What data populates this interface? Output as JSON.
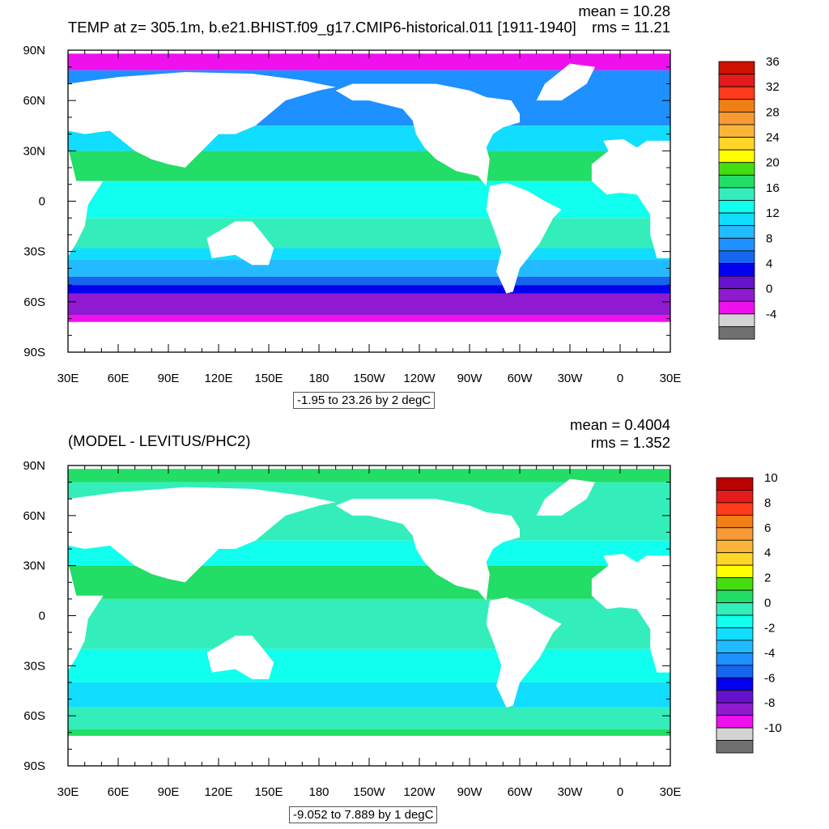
{
  "chart_data": [
    {
      "type": "heatmap",
      "title": "TEMP at z= 305.1m, b.e21.BHIST.f09_g17.CMIP6-historical.011 [1911-1940]",
      "stat_mean": "mean = 10.28",
      "stat_rms": "rms = 11.21",
      "range_label": "-1.95 to 23.26 by 2 degC",
      "x_ticks": [
        "30E",
        "60E",
        "90E",
        "120E",
        "150E",
        "180",
        "150W",
        "120W",
        "90W",
        "60W",
        "30W",
        "0",
        "30E"
      ],
      "y_ticks": [
        "90N",
        "60N",
        "30N",
        "0",
        "30S",
        "60S",
        "90S"
      ],
      "colorbar": {
        "labels": [
          "36",
          "32",
          "28",
          "24",
          "20",
          "16",
          "12",
          "8",
          "4",
          "0",
          "-4"
        ],
        "colors": [
          "#cc1100",
          "#e41a1c",
          "#ff3b1a",
          "#f07f14",
          "#f79a34",
          "#fbb43a",
          "#ffd52a",
          "#ffff00",
          "#44dd11",
          "#22dd66",
          "#33eebb",
          "#11ffee",
          "#11ddff",
          "#22bbff",
          "#1e90ff",
          "#1665ee",
          "#0000ee",
          "#6611cc",
          "#8f1ad0",
          "#ee11ee",
          "#d3d3d3",
          "#707070"
        ]
      },
      "land_color": "#ffffff"
    },
    {
      "type": "heatmap",
      "title": "(MODEL - LEVITUS/PHC2)",
      "stat_mean": "mean = 0.4004",
      "stat_rms": "rms = 1.352",
      "range_label": "-9.052 to 7.889 by 1 degC",
      "x_ticks": [
        "30E",
        "60E",
        "90E",
        "120E",
        "150E",
        "180",
        "150W",
        "120W",
        "90W",
        "60W",
        "30W",
        "0",
        "30E"
      ],
      "y_ticks": [
        "90N",
        "60N",
        "30N",
        "0",
        "30S",
        "60S",
        "90S"
      ],
      "colorbar": {
        "labels": [
          "10",
          "8",
          "6",
          "4",
          "2",
          "0",
          "-2",
          "-4",
          "-6",
          "-8",
          "-10"
        ],
        "colors": [
          "#bb0000",
          "#e41a1c",
          "#ff3b1a",
          "#f07f14",
          "#f79a34",
          "#fbb43a",
          "#ffd52a",
          "#ffff00",
          "#44dd11",
          "#22dd66",
          "#33eebb",
          "#11ffee",
          "#11ddff",
          "#22bbff",
          "#1e90ff",
          "#1665ee",
          "#0000ee",
          "#6611cc",
          "#8f1ad0",
          "#ee11ee",
          "#d3d3d3",
          "#707070"
        ]
      },
      "land_color": "#ffffff"
    }
  ]
}
